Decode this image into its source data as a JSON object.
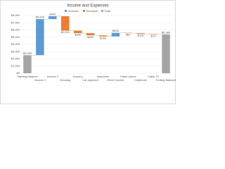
{
  "chart_data": {
    "type": "waterfall",
    "title": "Income and Expenses",
    "categories": [
      "Starting Balance",
      "Income 1",
      "Income 2",
      "Housing",
      "Grocery",
      "Car payment",
      "Insurance",
      "Other Income",
      "Home phone",
      "Cellphone",
      "Cable TV",
      "Ending Balance"
    ],
    "series": [
      {
        "name": "Increase",
        "color": "#5b9bd5",
        "values": [
          null,
          5000,
          400,
          null,
          null,
          null,
          null,
          500,
          null,
          null,
          null,
          null
        ],
        "value_labels": [
          null,
          "$5,000",
          "$400",
          null,
          null,
          null,
          null,
          "$500",
          null,
          null,
          null,
          null
        ]
      },
      {
        "name": "Decrease",
        "color": "#ed7d31",
        "values": [
          null,
          null,
          null,
          2000,
          350,
          300,
          150,
          null,
          50,
          100,
          70,
          null
        ],
        "value_labels": [
          null,
          null,
          null,
          "$2,000",
          "$350",
          "$300",
          "$150",
          null,
          "$50",
          "$100",
          "$70",
          null
        ]
      },
      {
        "name": "Total",
        "color": "#a5a5a5",
        "values": [
          2500,
          null,
          null,
          null,
          null,
          null,
          null,
          null,
          null,
          null,
          null,
          5380
        ],
        "value_labels": [
          "$2,500",
          null,
          null,
          null,
          null,
          null,
          null,
          null,
          null,
          null,
          null,
          "$5,380"
        ]
      }
    ],
    "ylim": [
      0,
      8000
    ],
    "yticks": [
      {
        "value": 0,
        "label": "$0"
      },
      {
        "value": 1000,
        "label": "$1,000"
      },
      {
        "value": 2000,
        "label": "$2,000"
      },
      {
        "value": 3000,
        "label": "$3,000"
      },
      {
        "value": 4000,
        "label": "$4,000"
      },
      {
        "value": 5000,
        "label": "$5,000"
      },
      {
        "value": 6000,
        "label": "$6,000"
      },
      {
        "value": 7000,
        "label": "$7,000"
      },
      {
        "value": 8000,
        "label": "$8,000"
      }
    ],
    "grid": true
  }
}
